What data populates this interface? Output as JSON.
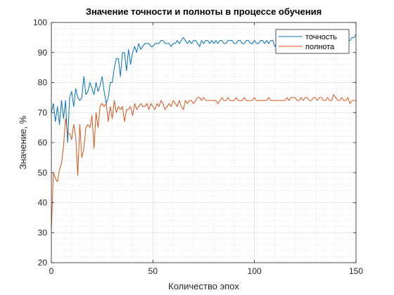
{
  "chart_data": {
    "type": "line",
    "title": "Значение точности и полноты в процессе обучения",
    "xlabel": "Количество эпох",
    "ylabel": "Значение, %",
    "xlim": [
      0,
      150
    ],
    "ylim": [
      20,
      100
    ],
    "xticks": [
      0,
      50,
      100,
      150
    ],
    "yticks": [
      20,
      30,
      40,
      50,
      60,
      70,
      80,
      90,
      100
    ],
    "grid": true,
    "minor_grid": true,
    "legend_position": "top-right",
    "series": [
      {
        "name": "точность",
        "color": "#0072bd",
        "x": [
          0,
          1,
          2,
          3,
          4,
          5,
          6,
          7,
          8,
          9,
          10,
          11,
          12,
          13,
          14,
          15,
          16,
          17,
          18,
          19,
          20,
          21,
          22,
          23,
          24,
          25,
          26,
          27,
          28,
          29,
          30,
          31,
          32,
          33,
          34,
          35,
          36,
          37,
          38,
          39,
          40,
          41,
          42,
          43,
          44,
          45,
          46,
          47,
          48,
          49,
          50,
          51,
          52,
          53,
          54,
          55,
          56,
          57,
          58,
          59,
          60,
          61,
          62,
          63,
          64,
          65,
          66,
          67,
          68,
          69,
          70,
          71,
          72,
          73,
          74,
          75,
          76,
          77,
          78,
          79,
          80,
          81,
          82,
          83,
          84,
          85,
          86,
          87,
          88,
          89,
          90,
          91,
          92,
          93,
          94,
          95,
          96,
          97,
          98,
          99,
          100,
          101,
          102,
          103,
          104,
          105,
          106,
          107,
          108,
          109,
          110,
          111,
          112,
          113,
          114,
          115,
          116,
          117,
          118,
          119,
          120,
          121,
          122,
          123,
          124,
          125,
          126,
          127,
          128,
          129,
          130,
          131,
          132,
          133,
          134,
          135,
          136,
          137,
          138,
          139,
          140,
          141,
          142,
          143,
          144,
          145,
          146,
          147,
          148,
          149,
          150
        ],
        "y": [
          70,
          73,
          67,
          72,
          66,
          74,
          68,
          74,
          60,
          75,
          77,
          72,
          78,
          75,
          74,
          75,
          82,
          76,
          77,
          80,
          78,
          76,
          80,
          77,
          79,
          82,
          77,
          73,
          75,
          80,
          80,
          85,
          88,
          88,
          82,
          90,
          90,
          84,
          91,
          86,
          90,
          92,
          90,
          93,
          91,
          92,
          93,
          93,
          93,
          92,
          92,
          93,
          93,
          93,
          94,
          94,
          93,
          93,
          93,
          92,
          93,
          93,
          94,
          93,
          94,
          95,
          94,
          93,
          94,
          93,
          94,
          94,
          93,
          92,
          94,
          93,
          94,
          94,
          93,
          94,
          93,
          94,
          93,
          94,
          94,
          93,
          93,
          94,
          94,
          94,
          93,
          93,
          94,
          94,
          93,
          93,
          94,
          94,
          93,
          93,
          94,
          93,
          93,
          94,
          94,
          93,
          94,
          93,
          94,
          94,
          92,
          93,
          94,
          93,
          94,
          93,
          94,
          94,
          93,
          94,
          94,
          93,
          94,
          94,
          93,
          94,
          94,
          94,
          93,
          94,
          94,
          94,
          95,
          94,
          94,
          94,
          94,
          94,
          94,
          94,
          95,
          95,
          94,
          94,
          94,
          95,
          94,
          94,
          95,
          95,
          96
        ]
      },
      {
        "name": "полнота",
        "color": "#d95319",
        "x": [
          0,
          1,
          2,
          3,
          4,
          5,
          6,
          7,
          8,
          9,
          10,
          11,
          12,
          13,
          14,
          15,
          16,
          17,
          18,
          19,
          20,
          21,
          22,
          23,
          24,
          25,
          26,
          27,
          28,
          29,
          30,
          31,
          32,
          33,
          34,
          35,
          36,
          37,
          38,
          39,
          40,
          41,
          42,
          43,
          44,
          45,
          46,
          47,
          48,
          49,
          50,
          51,
          52,
          53,
          54,
          55,
          56,
          57,
          58,
          59,
          60,
          61,
          62,
          63,
          64,
          65,
          66,
          67,
          68,
          69,
          70,
          71,
          72,
          73,
          74,
          75,
          76,
          77,
          78,
          79,
          80,
          81,
          82,
          83,
          84,
          85,
          86,
          87,
          88,
          89,
          90,
          91,
          92,
          93,
          94,
          95,
          96,
          97,
          98,
          99,
          100,
          101,
          102,
          103,
          104,
          105,
          106,
          107,
          108,
          109,
          110,
          111,
          112,
          113,
          114,
          115,
          116,
          117,
          118,
          119,
          120,
          121,
          122,
          123,
          124,
          125,
          126,
          127,
          128,
          129,
          130,
          131,
          132,
          133,
          134,
          135,
          136,
          137,
          138,
          139,
          140,
          141,
          142,
          143,
          144,
          145,
          146,
          147,
          148,
          149,
          150
        ],
        "y": [
          31,
          50,
          48,
          47,
          51,
          53,
          59,
          68,
          63,
          63,
          61,
          66,
          62,
          49,
          66,
          55,
          58,
          65,
          66,
          65,
          69,
          58,
          70,
          65,
          72,
          73,
          72,
          73,
          67,
          72,
          68,
          74,
          70,
          72,
          71,
          72,
          67,
          71,
          71,
          72,
          69,
          73,
          71,
          72,
          73,
          72,
          72,
          73,
          71,
          73,
          72,
          71,
          73,
          72,
          74,
          73,
          71,
          72,
          73,
          72,
          74,
          73,
          72,
          74,
          72,
          71,
          74,
          73,
          74,
          74,
          73,
          74,
          75,
          75,
          74,
          75,
          74,
          74,
          74,
          74,
          74,
          74,
          73,
          74,
          75,
          74,
          74,
          75,
          74,
          74,
          74,
          75,
          74,
          74,
          74,
          75,
          74,
          74,
          74,
          74,
          75,
          74,
          74,
          74,
          74,
          74,
          74,
          75,
          74,
          74,
          74,
          74,
          74,
          74,
          74,
          74,
          75,
          74,
          75,
          75,
          75,
          74,
          74,
          75,
          74,
          75,
          75,
          74,
          74,
          75,
          75,
          74,
          75,
          75,
          74,
          74,
          75,
          74,
          74,
          76,
          75,
          74,
          74,
          75,
          74,
          74,
          75,
          73,
          74,
          74,
          74
        ]
      }
    ]
  }
}
